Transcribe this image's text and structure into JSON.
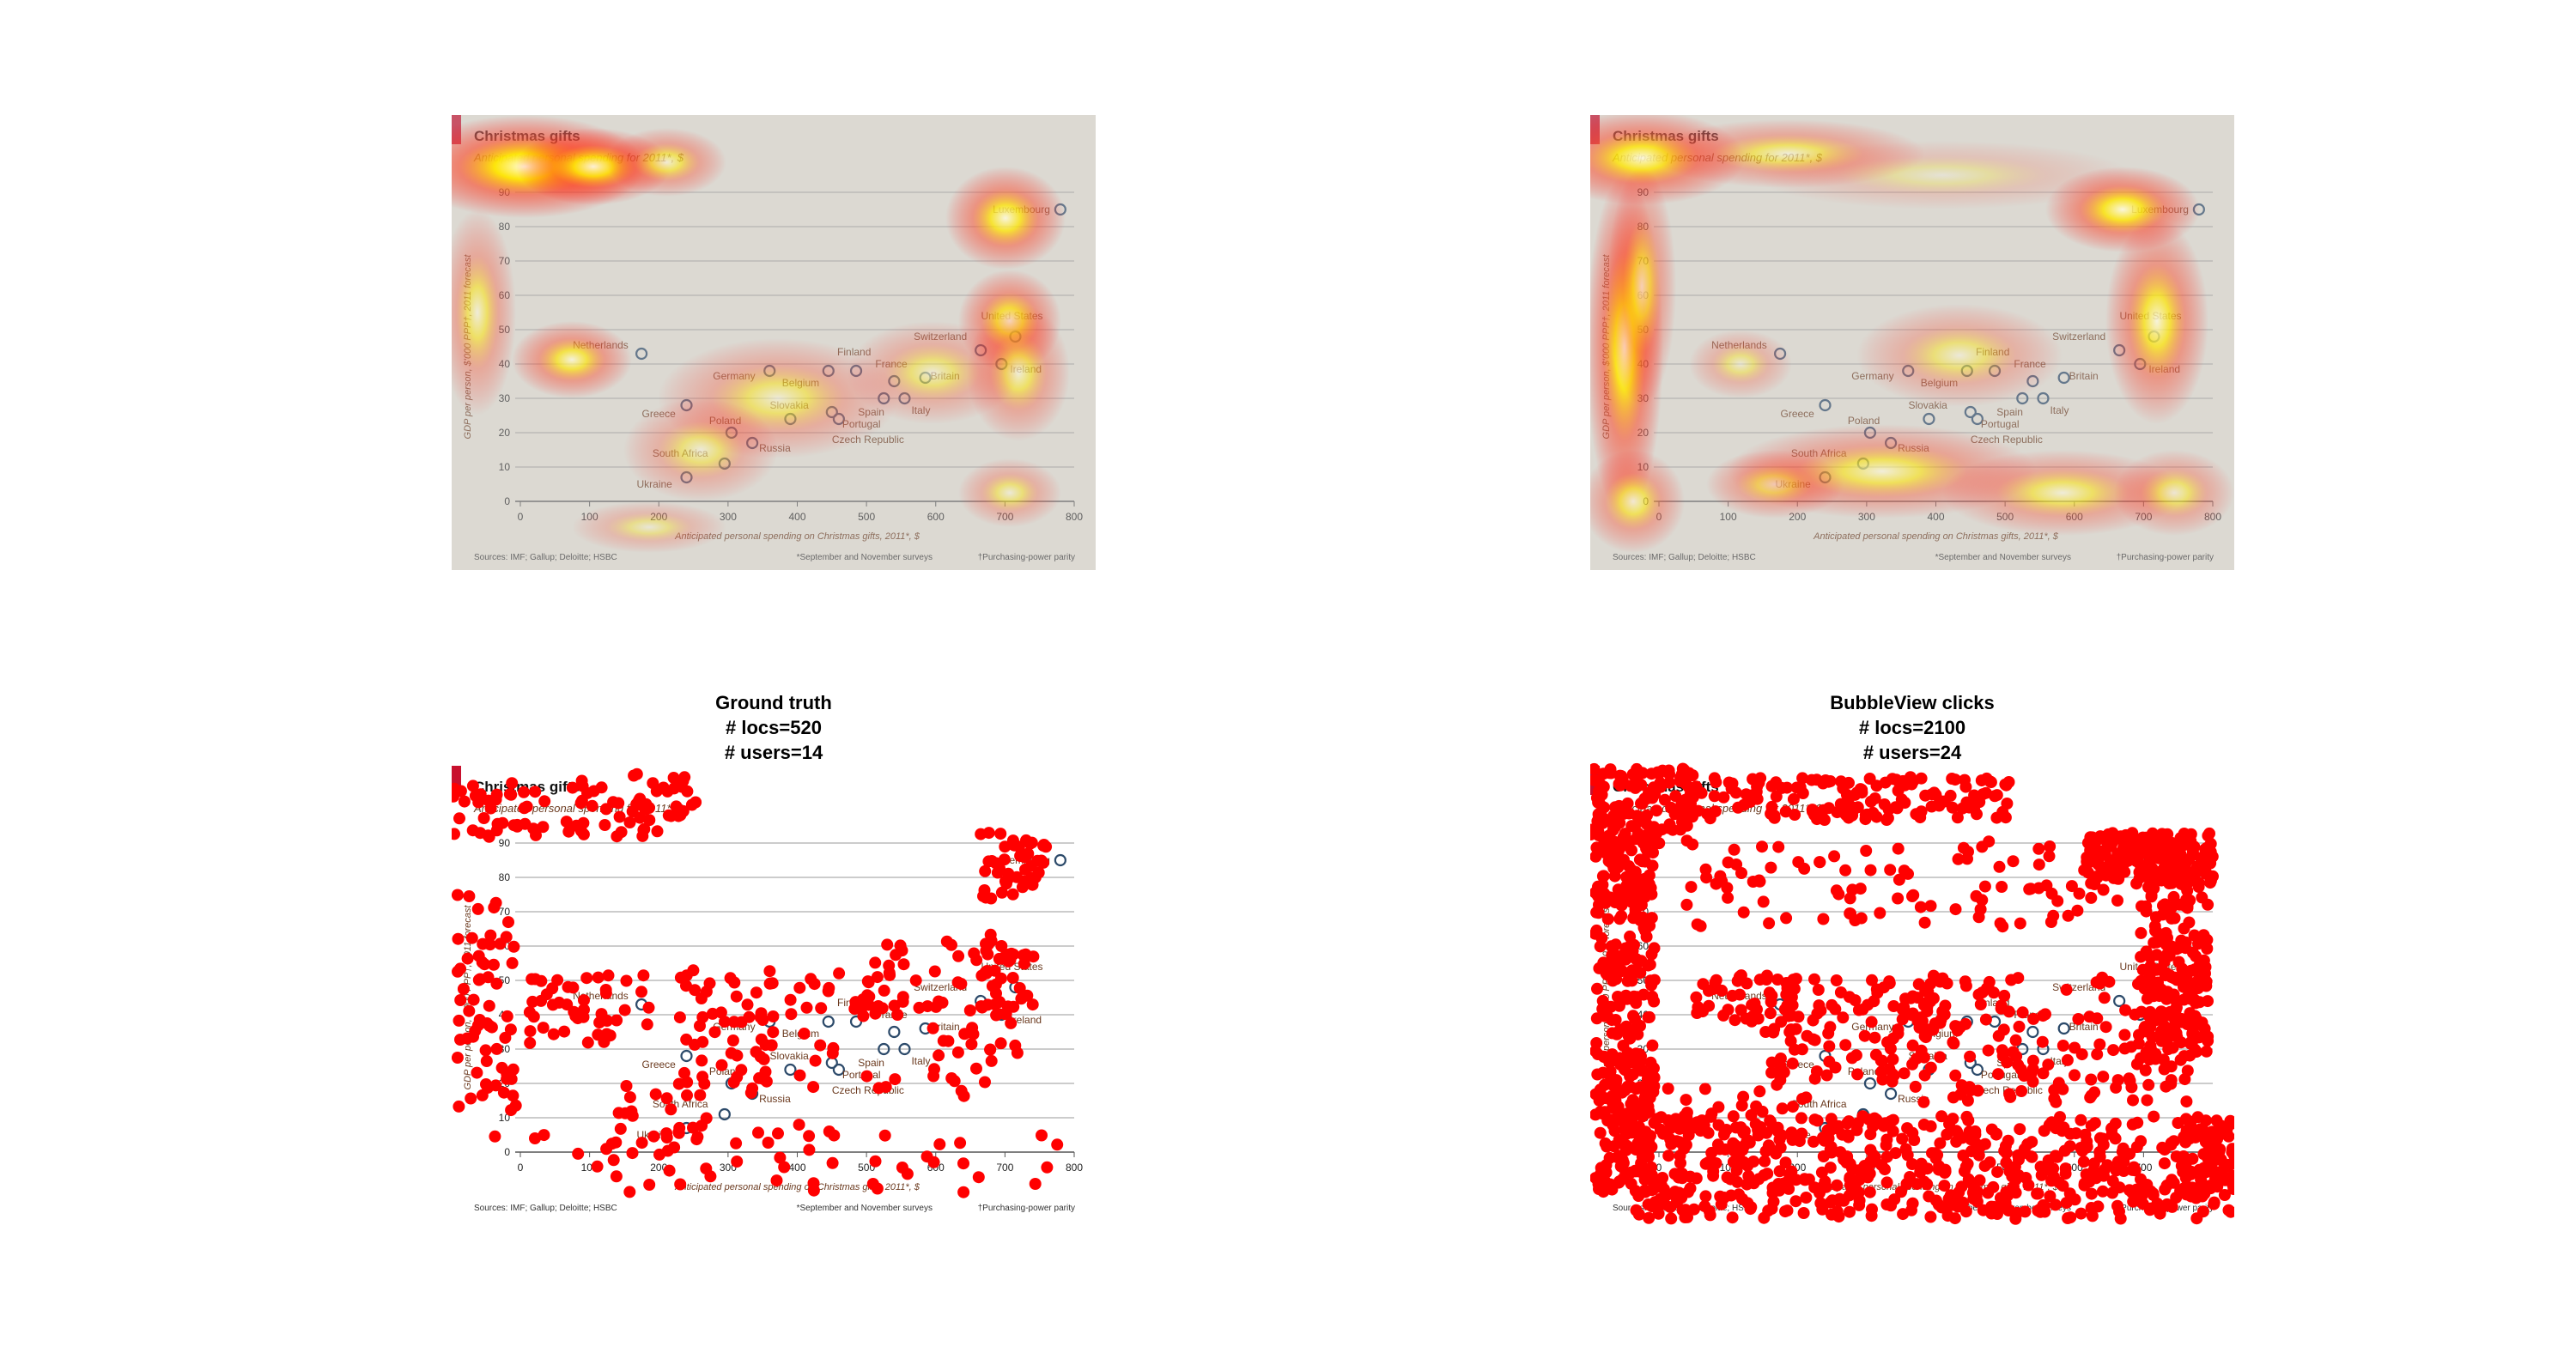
{
  "panels": {
    "ground_truth": {
      "title": "Ground truth",
      "locs_line": "# locs=520",
      "users_line": "# users=14"
    },
    "bubbleview": {
      "title": "BubbleView clicks",
      "locs_line": "# locs=2100",
      "users_line": "# users=24"
    }
  },
  "chart_data": {
    "type": "scatter",
    "title": "Christmas gifts",
    "subtitle": "Anticipated personal spending for 2011*, $",
    "xlabel": "Anticipated personal spending on Christmas gifts, 2011*, $",
    "ylabel": "GDP per person, $'000 PPP†, 2011 forecast",
    "xlim": [
      0,
      800
    ],
    "ylim": [
      0,
      90
    ],
    "xticks": [
      0,
      100,
      200,
      300,
      400,
      500,
      600,
      700,
      800
    ],
    "yticks": [
      0,
      10,
      20,
      30,
      40,
      50,
      60,
      70,
      80,
      90
    ],
    "grid": true,
    "points": [
      {
        "label": "Luxembourg",
        "x": 780,
        "y": 85
      },
      {
        "label": "United States",
        "x": 715,
        "y": 48
      },
      {
        "label": "Switzerland",
        "x": 665,
        "y": 44
      },
      {
        "label": "Ireland",
        "x": 695,
        "y": 40
      },
      {
        "label": "Netherlands",
        "x": 175,
        "y": 43
      },
      {
        "label": "Finland",
        "x": 485,
        "y": 38
      },
      {
        "label": "France",
        "x": 540,
        "y": 35
      },
      {
        "label": "Germany",
        "x": 360,
        "y": 38
      },
      {
        "label": "Belgium",
        "x": 445,
        "y": 38
      },
      {
        "label": "Britain",
        "x": 585,
        "y": 36
      },
      {
        "label": "Spain",
        "x": 525,
        "y": 30
      },
      {
        "label": "Italy",
        "x": 555,
        "y": 30
      },
      {
        "label": "Greece",
        "x": 240,
        "y": 28
      },
      {
        "label": "Slovakia",
        "x": 390,
        "y": 24
      },
      {
        "label": "Portugal",
        "x": 460,
        "y": 24
      },
      {
        "label": "Poland",
        "x": 305,
        "y": 20
      },
      {
        "label": "Russia",
        "x": 335,
        "y": 17
      },
      {
        "label": "Czech Republic",
        "x": 450,
        "y": 26
      },
      {
        "label": "South Africa",
        "x": 295,
        "y": 11
      },
      {
        "label": "Ukraine",
        "x": 240,
        "y": 7
      }
    ],
    "sources": "Sources: IMF; Gallup; Deloitte; HSBC",
    "footnote1": "*September and November surveys",
    "footnote2": "†Purchasing-power parity"
  },
  "colors": {
    "accent": "#c8102e",
    "chart_bg": "#e8e3d8",
    "label": "#6b3a1f",
    "marker": "#2c4a6a",
    "click": "#ff0000",
    "heat_base": "#c8c8c8"
  }
}
